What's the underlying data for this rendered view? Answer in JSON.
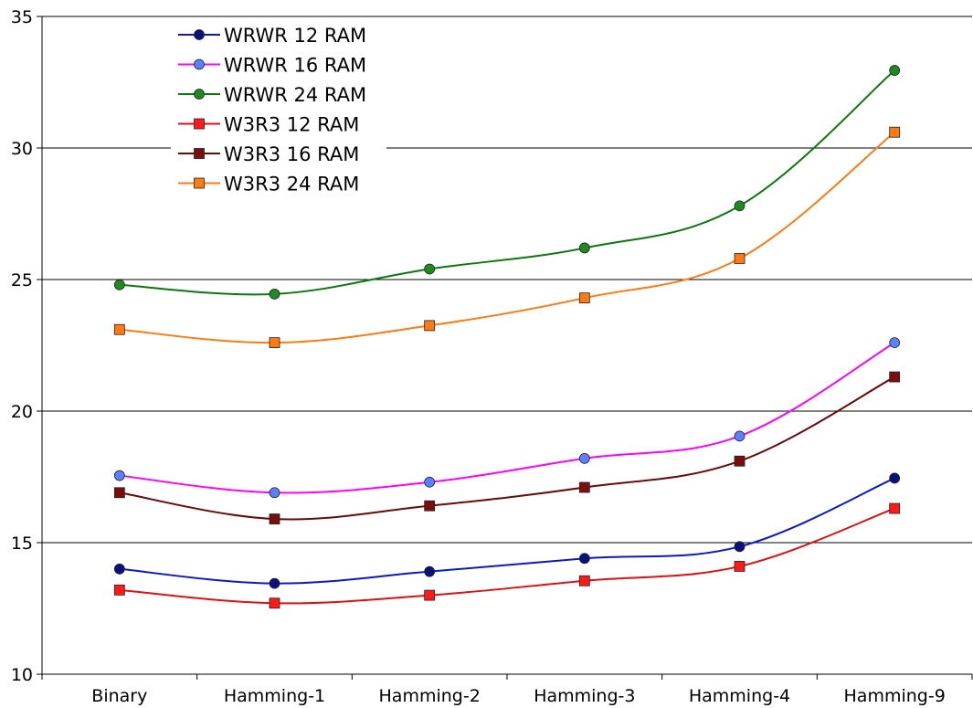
{
  "chart_data": {
    "type": "line",
    "title": "",
    "xlabel": "",
    "ylabel": "",
    "categories": [
      "Binary",
      "Hamming-1",
      "Hamming-2",
      "Hamming-3",
      "Hamming-4",
      "Hamming-9"
    ],
    "ylim": [
      10,
      35
    ],
    "yticks": [
      "10",
      "15",
      "20",
      "25",
      "30",
      "35"
    ],
    "grid": "horizontal",
    "legend_position": "top-left",
    "series": [
      {
        "name": "WRWR 12 RAM",
        "color": "#0a19c8",
        "marker_color": "#0a1080",
        "marker": "circle",
        "values": [
          14.0,
          13.45,
          13.9,
          14.4,
          14.85,
          17.45
        ]
      },
      {
        "name": "WRWR 16 RAM",
        "color": "#ff00ff",
        "marker_color": "#5a7fff",
        "marker": "circle",
        "values": [
          17.55,
          16.9,
          17.3,
          18.2,
          19.05,
          22.6
        ]
      },
      {
        "name": "WRWR 24 RAM",
        "color": "#0a7a0a",
        "marker_color": "#1f8a1f",
        "marker": "circle",
        "values": [
          24.8,
          24.45,
          25.4,
          26.2,
          27.8,
          32.95
        ]
      },
      {
        "name": "W3R3 12 RAM",
        "color": "#e01010",
        "marker_color": "#ff1a1a",
        "marker": "square",
        "values": [
          13.2,
          12.7,
          13.0,
          13.55,
          14.1,
          16.3
        ]
      },
      {
        "name": "W3R3 16 RAM",
        "color": "#6a0a0a",
        "marker_color": "#7a0e0e",
        "marker": "square",
        "values": [
          16.9,
          15.9,
          16.4,
          17.1,
          18.1,
          21.3
        ]
      },
      {
        "name": "W3R3 24 RAM",
        "color": "#ff7a10",
        "marker_color": "#ff7a10",
        "marker": "square",
        "values": [
          23.1,
          22.6,
          23.25,
          24.3,
          25.8,
          30.6
        ]
      }
    ]
  }
}
